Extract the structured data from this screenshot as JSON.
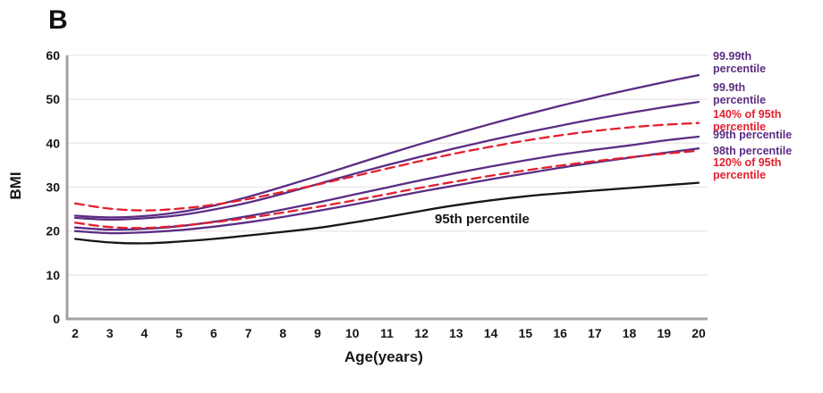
{
  "panel_label": "B",
  "colors": {
    "percentile_line": "#5b2d84",
    "percent_of_95_line": "#e3202e",
    "p95_line": "#161616",
    "axis": "#a5a0a0",
    "gridline": "#edebeb",
    "text": "#161616"
  },
  "chart_data": {
    "type": "line",
    "title": "",
    "xlabel": "Age(years)",
    "ylabel": "BMI",
    "xlim": [
      2,
      20
    ],
    "ylim": [
      0,
      60
    ],
    "x_ticks": [
      2,
      3,
      4,
      5,
      6,
      7,
      8,
      9,
      10,
      11,
      12,
      13,
      14,
      15,
      16,
      17,
      18,
      19,
      20
    ],
    "y_ticks": [
      0,
      10,
      20,
      30,
      40,
      50,
      60
    ],
    "grid": "horizontal",
    "legend_position": "right",
    "x": [
      2,
      3,
      4,
      5,
      6,
      7,
      8,
      9,
      10,
      11,
      12,
      13,
      14,
      15,
      16,
      17,
      18,
      19,
      20
    ],
    "series": [
      {
        "name": "99.99th percentile",
        "color": "#5b2d84",
        "style": "solid",
        "values": [
          23.5,
          23.1,
          23.4,
          24.3,
          25.8,
          27.8,
          30.1,
          32.5,
          35.0,
          37.5,
          39.9,
          42.2,
          44.4,
          46.5,
          48.5,
          50.4,
          52.2,
          53.9,
          55.5
        ]
      },
      {
        "name": "99.9th percentile",
        "color": "#5b2d84",
        "style": "solid",
        "values": [
          23.0,
          22.6,
          22.9,
          23.6,
          24.9,
          26.5,
          28.5,
          30.7,
          32.9,
          35.0,
          37.0,
          38.9,
          40.7,
          42.4,
          44.0,
          45.5,
          46.9,
          48.2,
          49.4
        ]
      },
      {
        "name": "140% of 95th percentile",
        "color": "#e3202e",
        "style": "dashed",
        "values": [
          26.3,
          25.1,
          24.7,
          25.1,
          26.0,
          27.3,
          28.9,
          30.6,
          32.4,
          34.2,
          36.0,
          37.7,
          39.2,
          40.6,
          41.8,
          42.8,
          43.6,
          44.2,
          44.6
        ]
      },
      {
        "name": "99th percentile",
        "color": "#5b2d84",
        "style": "solid",
        "values": [
          20.8,
          20.3,
          20.5,
          21.1,
          22.1,
          23.4,
          24.9,
          26.5,
          28.2,
          29.9,
          31.6,
          33.2,
          34.7,
          36.1,
          37.4,
          38.5,
          39.5,
          40.6,
          41.5
        ]
      },
      {
        "name": "98th percentile",
        "color": "#5b2d84",
        "style": "solid",
        "values": [
          20.0,
          19.5,
          19.7,
          20.2,
          21.0,
          22.0,
          23.2,
          24.6,
          26.0,
          27.5,
          29.0,
          30.4,
          31.8,
          33.1,
          34.4,
          35.6,
          36.7,
          37.8,
          38.8
        ]
      },
      {
        "name": "120% of 95th percentile",
        "color": "#e3202e",
        "style": "dashed",
        "values": [
          21.9,
          20.9,
          20.7,
          21.2,
          22.0,
          23.0,
          24.2,
          25.5,
          26.9,
          28.4,
          29.9,
          31.3,
          32.6,
          33.8,
          34.9,
          35.9,
          36.8,
          37.6,
          38.3
        ]
      },
      {
        "name": "95th percentile",
        "color": "#161616",
        "style": "solid",
        "values": [
          18.2,
          17.4,
          17.2,
          17.6,
          18.2,
          19.0,
          19.8,
          20.7,
          21.9,
          23.2,
          24.6,
          25.9,
          27.0,
          27.9,
          28.6,
          29.2,
          29.8,
          30.4,
          31.0
        ]
      }
    ],
    "inline_annotation": "95th percentile"
  }
}
